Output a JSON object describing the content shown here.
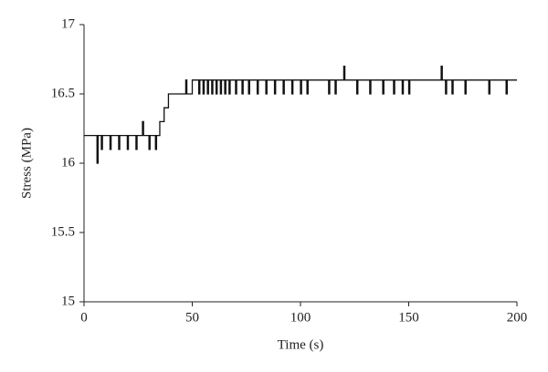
{
  "chart_data": {
    "type": "line",
    "x_label": "Time (s)",
    "y_label": "Stress (MPa)",
    "xlim": [
      0,
      200
    ],
    "xticks": [
      0,
      50,
      100,
      150,
      200
    ],
    "ylim": [
      15,
      17
    ],
    "yticks": [
      15,
      15.5,
      16,
      16.5,
      17
    ],
    "x": [
      0,
      6,
      6,
      6.5,
      6.5,
      8,
      8,
      8.5,
      8.5,
      12,
      12,
      12.5,
      12.5,
      16,
      16,
      16.5,
      16.5,
      20,
      20,
      20.5,
      20.5,
      24,
      24,
      24.5,
      24.5,
      27,
      27,
      27.5,
      27.5,
      30,
      30,
      30.5,
      30.5,
      33,
      33,
      33.5,
      33.5,
      35,
      35,
      37,
      37,
      39,
      39,
      47,
      47,
      47.5,
      47.5,
      50,
      50,
      53,
      53,
      53.5,
      53.5,
      55,
      55,
      55.5,
      55.5,
      57,
      57,
      57.5,
      57.5,
      59,
      59,
      59.5,
      59.5,
      61,
      61,
      61.5,
      61.5,
      63,
      63,
      63.5,
      63.5,
      65,
      65,
      65.5,
      65.5,
      67,
      67,
      67.5,
      67.5,
      70,
      70,
      70.5,
      70.5,
      73,
      73,
      73.5,
      73.5,
      76,
      76,
      76.5,
      76.5,
      80,
      80,
      80.5,
      80.5,
      84,
      84,
      84.5,
      84.5,
      88,
      88,
      88.5,
      88.5,
      92,
      92,
      92.5,
      92.5,
      96,
      96,
      96.5,
      96.5,
      100,
      100,
      100.5,
      100.5,
      103,
      103,
      103.5,
      103.5,
      113,
      113,
      113.5,
      113.5,
      116,
      116,
      116.5,
      116.5,
      120,
      120,
      120.5,
      120.5,
      126,
      126,
      126.5,
      126.5,
      132,
      132,
      132.5,
      132.5,
      138,
      138,
      138.5,
      138.5,
      143,
      143,
      143.5,
      143.5,
      147,
      147,
      147.5,
      147.5,
      150,
      150,
      150.5,
      150.5,
      165,
      165,
      165.5,
      165.5,
      167,
      167,
      167.5,
      167.5,
      170,
      170,
      170.5,
      170.5,
      176,
      176,
      176.5,
      176.5,
      187,
      187,
      187.5,
      187.5,
      195,
      195,
      195.5,
      195.5,
      200
    ],
    "series": [
      {
        "color": "#111111",
        "values": [
          16.2,
          16.2,
          16.0,
          16.0,
          16.2,
          16.2,
          16.1,
          16.1,
          16.2,
          16.2,
          16.1,
          16.1,
          16.2,
          16.2,
          16.1,
          16.1,
          16.2,
          16.2,
          16.1,
          16.1,
          16.2,
          16.2,
          16.1,
          16.1,
          16.2,
          16.2,
          16.3,
          16.3,
          16.2,
          16.2,
          16.1,
          16.1,
          16.2,
          16.2,
          16.1,
          16.1,
          16.2,
          16.2,
          16.3,
          16.3,
          16.4,
          16.4,
          16.5,
          16.5,
          16.6,
          16.6,
          16.5,
          16.5,
          16.6,
          16.6,
          16.5,
          16.5,
          16.6,
          16.6,
          16.5,
          16.5,
          16.6,
          16.6,
          16.5,
          16.5,
          16.6,
          16.6,
          16.5,
          16.5,
          16.6,
          16.6,
          16.5,
          16.5,
          16.6,
          16.6,
          16.5,
          16.5,
          16.6,
          16.6,
          16.5,
          16.5,
          16.6,
          16.6,
          16.5,
          16.5,
          16.6,
          16.6,
          16.5,
          16.5,
          16.6,
          16.6,
          16.5,
          16.5,
          16.6,
          16.6,
          16.5,
          16.5,
          16.6,
          16.6,
          16.5,
          16.5,
          16.6,
          16.6,
          16.5,
          16.5,
          16.6,
          16.6,
          16.5,
          16.5,
          16.6,
          16.6,
          16.5,
          16.5,
          16.6,
          16.6,
          16.5,
          16.5,
          16.6,
          16.6,
          16.5,
          16.5,
          16.6,
          16.6,
          16.5,
          16.5,
          16.6,
          16.6,
          16.5,
          16.5,
          16.6,
          16.6,
          16.5,
          16.5,
          16.6,
          16.6,
          16.7,
          16.7,
          16.6,
          16.6,
          16.5,
          16.5,
          16.6,
          16.6,
          16.5,
          16.5,
          16.6,
          16.6,
          16.5,
          16.5,
          16.6,
          16.6,
          16.5,
          16.5,
          16.6,
          16.6,
          16.5,
          16.5,
          16.6,
          16.6,
          16.5,
          16.5,
          16.6,
          16.6,
          16.7,
          16.7,
          16.6,
          16.6,
          16.5,
          16.5,
          16.6,
          16.6,
          16.5,
          16.5,
          16.6,
          16.6,
          16.5,
          16.5,
          16.6,
          16.6,
          16.5,
          16.5,
          16.6,
          16.6,
          16.5,
          16.5,
          16.6,
          16.6
        ]
      }
    ]
  }
}
